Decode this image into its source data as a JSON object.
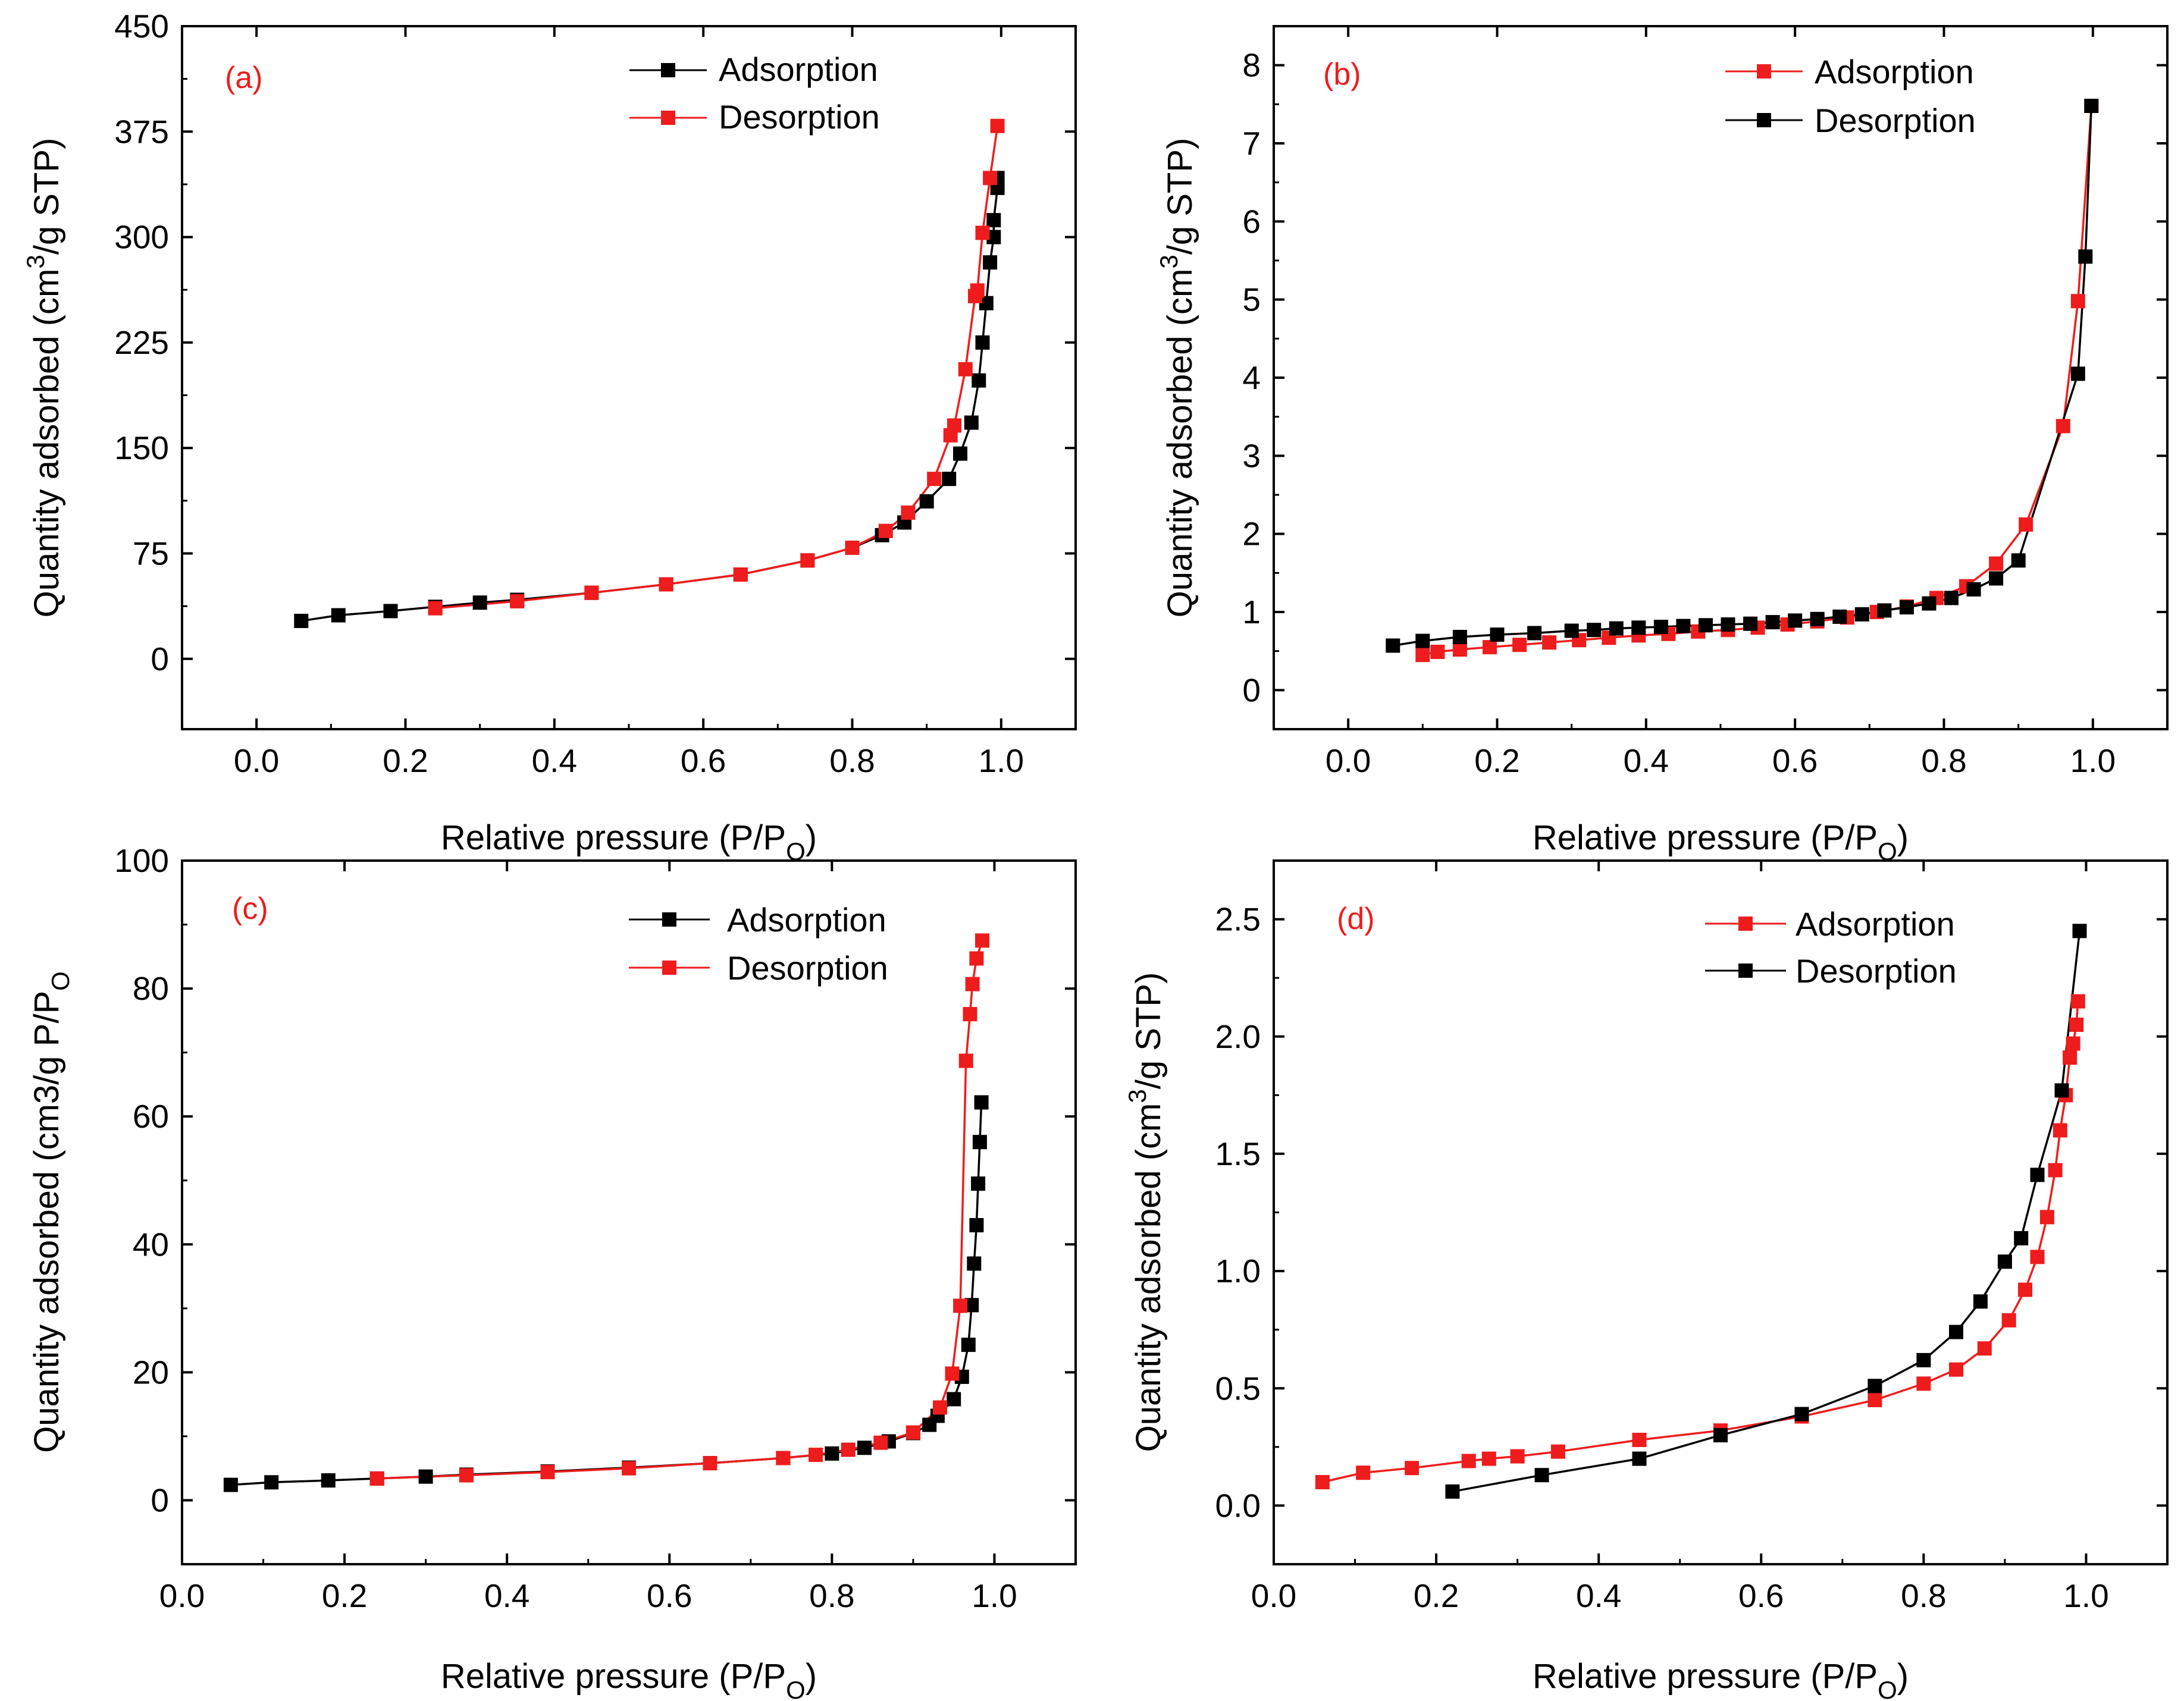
{
  "colors": {
    "adsorption_black": "#000000",
    "desorption_red": "#ee1c1c",
    "label_red": "#ee1c1c",
    "axis": "#000000"
  },
  "chart_data": [
    {
      "type": "line",
      "panel": "(a)",
      "title": "",
      "xlabel": "Relative pressure (P/P",
      "xlabel_sub": "O",
      "xlabel_close": ")",
      "ylabel": "Quantity adsorbed (cm",
      "ylabel_sup": "3",
      "ylabel_close": "/g STP)",
      "xlim": [
        -0.1,
        1.1
      ],
      "ylim": [
        -50,
        450
      ],
      "xticks": [
        0.0,
        0.2,
        0.4,
        0.6,
        0.8,
        1.0
      ],
      "xtick_labels": [
        "0.0",
        "0.2",
        "0.4",
        "0.6",
        "0.8",
        "1.0"
      ],
      "yticks": [
        0,
        75,
        150,
        225,
        300,
        375,
        450
      ],
      "ytick_labels": [
        "0",
        "75",
        "150",
        "225",
        "300",
        "375",
        "450"
      ],
      "legend_position": "top-right",
      "series": [
        {
          "name": "Adsorption",
          "color": "#000000",
          "x": [
            0.06,
            0.11,
            0.18,
            0.24,
            0.3,
            0.35,
            0.45,
            0.55,
            0.65,
            0.74,
            0.8,
            0.84,
            0.87,
            0.9,
            0.93,
            0.945,
            0.96,
            0.97,
            0.975,
            0.98,
            0.985,
            0.99,
            0.99,
            0.995,
            0.995
          ],
          "y": [
            27,
            31,
            34,
            37,
            40,
            42,
            47,
            53,
            60,
            70,
            79,
            88,
            97,
            112,
            128,
            146,
            168,
            198,
            225,
            253,
            282,
            300,
            312,
            335,
            342
          ]
        },
        {
          "name": "Desorption",
          "color": "#ee1c1c",
          "x": [
            0.995,
            0.985,
            0.975,
            0.968,
            0.965,
            0.952,
            0.937,
            0.932,
            0.91,
            0.875,
            0.845,
            0.8,
            0.74,
            0.65,
            0.55,
            0.45,
            0.35,
            0.24
          ],
          "y": [
            379,
            342,
            303,
            262,
            258,
            206,
            166,
            159,
            128,
            104,
            91,
            79,
            70,
            60,
            53,
            47,
            41,
            36
          ]
        }
      ]
    },
    {
      "type": "line",
      "panel": "(b)",
      "title": "",
      "xlabel": "Relative pressure (P/P",
      "xlabel_sub": "O",
      "xlabel_close": ")",
      "ylabel": "Quantity adsorbed (cm",
      "ylabel_sup": "3",
      "ylabel_close": "/g STP)",
      "xlim": [
        -0.1,
        1.1
      ],
      "ylim": [
        -0.5,
        8.5
      ],
      "xticks": [
        0.0,
        0.2,
        0.4,
        0.6,
        0.8,
        1.0
      ],
      "xtick_labels": [
        "0.0",
        "0.2",
        "0.4",
        "0.6",
        "0.8",
        "1.0"
      ],
      "yticks": [
        0,
        1,
        2,
        3,
        4,
        5,
        6,
        7,
        8
      ],
      "ytick_labels": [
        "0",
        "1",
        "2",
        "3",
        "4",
        "5",
        "6",
        "7",
        "8"
      ],
      "legend_position": "top-right",
      "series": [
        {
          "name": "Adsorption",
          "color": "#ee1c1c",
          "x": [
            0.1,
            0.12,
            0.15,
            0.19,
            0.23,
            0.27,
            0.31,
            0.35,
            0.39,
            0.43,
            0.47,
            0.51,
            0.55,
            0.59,
            0.63,
            0.67,
            0.71,
            0.75,
            0.79,
            0.83,
            0.87,
            0.91,
            0.96,
            0.98,
            0.998
          ],
          "y": [
            0.45,
            0.49,
            0.52,
            0.55,
            0.58,
            0.61,
            0.64,
            0.67,
            0.7,
            0.72,
            0.75,
            0.77,
            0.8,
            0.84,
            0.88,
            0.93,
            1.0,
            1.07,
            1.18,
            1.33,
            1.62,
            2.12,
            3.38,
            4.98,
            7.48
          ]
        },
        {
          "name": "Desorption",
          "color": "#000000",
          "x": [
            0.998,
            0.99,
            0.98,
            0.9,
            0.87,
            0.84,
            0.81,
            0.78,
            0.75,
            0.72,
            0.69,
            0.66,
            0.63,
            0.6,
            0.57,
            0.54,
            0.51,
            0.48,
            0.45,
            0.42,
            0.39,
            0.36,
            0.33,
            0.3,
            0.25,
            0.2,
            0.15,
            0.1,
            0.06
          ],
          "y": [
            7.48,
            5.55,
            4.05,
            1.66,
            1.43,
            1.29,
            1.18,
            1.11,
            1.06,
            1.02,
            0.97,
            0.94,
            0.91,
            0.89,
            0.87,
            0.85,
            0.84,
            0.83,
            0.82,
            0.81,
            0.8,
            0.79,
            0.77,
            0.76,
            0.73,
            0.71,
            0.68,
            0.63,
            0.57
          ]
        }
      ]
    },
    {
      "type": "line",
      "panel": "(c)",
      "title": "",
      "xlabel": "Relative pressure (P/P",
      "xlabel_sub": "O",
      "xlabel_close": ")",
      "ylabel": "Quantity adsorbed (cm3/g P/P",
      "ylabel_sub": "O",
      "ylabel_close": "",
      "xlim": [
        0.0,
        1.1
      ],
      "ylim": [
        -10,
        100
      ],
      "xticks": [
        0.0,
        0.2,
        0.4,
        0.6,
        0.8,
        1.0
      ],
      "xtick_labels": [
        "0.0",
        "0.2",
        "0.4",
        "0.6",
        "0.8",
        "1.0"
      ],
      "yticks": [
        0,
        20,
        40,
        60,
        80,
        100
      ],
      "ytick_labels": [
        "0",
        "20",
        "40",
        "60",
        "80",
        "100"
      ],
      "legend_position": "top-right",
      "series": [
        {
          "name": "Adsorption",
          "color": "#000000",
          "x": [
            0.06,
            0.11,
            0.18,
            0.24,
            0.3,
            0.35,
            0.45,
            0.55,
            0.65,
            0.74,
            0.8,
            0.84,
            0.87,
            0.9,
            0.92,
            0.93,
            0.95,
            0.96,
            0.968,
            0.972,
            0.975,
            0.978,
            0.98,
            0.982,
            0.984
          ],
          "y": [
            2.4,
            2.8,
            3.1,
            3.4,
            3.7,
            4.0,
            4.5,
            5.1,
            5.8,
            6.6,
            7.3,
            8.2,
            9.2,
            10.5,
            11.8,
            13.2,
            15.8,
            19.3,
            24.3,
            30.5,
            37.0,
            43.0,
            49.5,
            56.0,
            62.2
          ]
        },
        {
          "name": "Desorption",
          "color": "#ee1c1c",
          "x": [
            0.985,
            0.978,
            0.973,
            0.97,
            0.965,
            0.958,
            0.948,
            0.933,
            0.9,
            0.86,
            0.82,
            0.78,
            0.74,
            0.65,
            0.55,
            0.45,
            0.35,
            0.24
          ],
          "y": [
            87.5,
            84.7,
            80.7,
            76.0,
            68.7,
            30.4,
            19.8,
            14.5,
            10.6,
            9.0,
            7.9,
            7.1,
            6.6,
            5.8,
            5.0,
            4.4,
            3.9,
            3.4
          ]
        }
      ]
    },
    {
      "type": "line",
      "panel": "(d)",
      "title": "",
      "xlabel": "Relative pressure (P/P",
      "xlabel_sub": "O",
      "xlabel_close": ")",
      "ylabel": "Quantity adsorbed (cm",
      "ylabel_sup": "3",
      "ylabel_close": "/g STP)",
      "xlim": [
        0.0,
        1.1
      ],
      "ylim": [
        -0.25,
        2.75
      ],
      "xticks": [
        0.0,
        0.2,
        0.4,
        0.6,
        0.8,
        1.0
      ],
      "xtick_labels": [
        "0.0",
        "0.2",
        "0.4",
        "0.6",
        "0.8",
        "1.0"
      ],
      "yticks": [
        0.0,
        0.5,
        1.0,
        1.5,
        2.0,
        2.5
      ],
      "ytick_labels": [
        "0.0",
        "0.5",
        "1.0",
        "1.5",
        "2.0",
        "2.5"
      ],
      "legend_position": "top-right",
      "series": [
        {
          "name": "Adsorption",
          "color": "#ee1c1c",
          "x": [
            0.06,
            0.11,
            0.17,
            0.24,
            0.265,
            0.3,
            0.35,
            0.45,
            0.55,
            0.65,
            0.74,
            0.8,
            0.84,
            0.875,
            0.905,
            0.925,
            0.94,
            0.952,
            0.962,
            0.968,
            0.975,
            0.98,
            0.984,
            0.988,
            0.99
          ],
          "y": [
            0.1,
            0.14,
            0.16,
            0.19,
            0.2,
            0.21,
            0.23,
            0.28,
            0.32,
            0.38,
            0.45,
            0.52,
            0.58,
            0.67,
            0.79,
            0.92,
            1.06,
            1.23,
            1.43,
            1.6,
            1.75,
            1.91,
            1.97,
            2.05,
            2.15
          ]
        },
        {
          "name": "Desorption",
          "color": "#000000",
          "x": [
            0.992,
            0.97,
            0.94,
            0.92,
            0.9,
            0.87,
            0.84,
            0.8,
            0.74,
            0.65,
            0.55,
            0.45,
            0.33,
            0.22
          ],
          "y": [
            2.45,
            1.77,
            1.41,
            1.14,
            1.04,
            0.87,
            0.74,
            0.62,
            0.51,
            0.39,
            0.3,
            0.2,
            0.13,
            0.06
          ]
        }
      ]
    }
  ]
}
